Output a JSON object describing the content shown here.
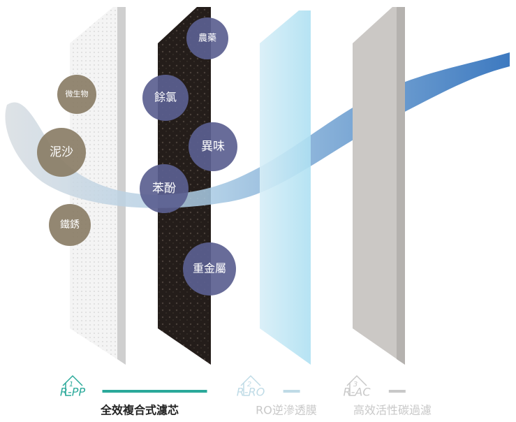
{
  "contaminants": [
    {
      "label": "微生物",
      "group": "pp"
    },
    {
      "label": "泥沙",
      "group": "pp"
    },
    {
      "label": "鐵銹",
      "group": "pp"
    },
    {
      "label": "農藥",
      "group": "ac"
    },
    {
      "label": "餘氯",
      "group": "ac"
    },
    {
      "label": "異味",
      "group": "ac"
    },
    {
      "label": "苯酚",
      "group": "ac"
    },
    {
      "label": "重金屬",
      "group": "ac"
    }
  ],
  "filters": [
    {
      "number": "1",
      "code": "R-PP",
      "caption": "全效複合式濾芯"
    },
    {
      "number": "2",
      "code": "R-RO",
      "caption": "RO逆滲透膜"
    },
    {
      "number": "3",
      "code": "R-AC",
      "caption": "高效活性碳過濾"
    }
  ]
}
